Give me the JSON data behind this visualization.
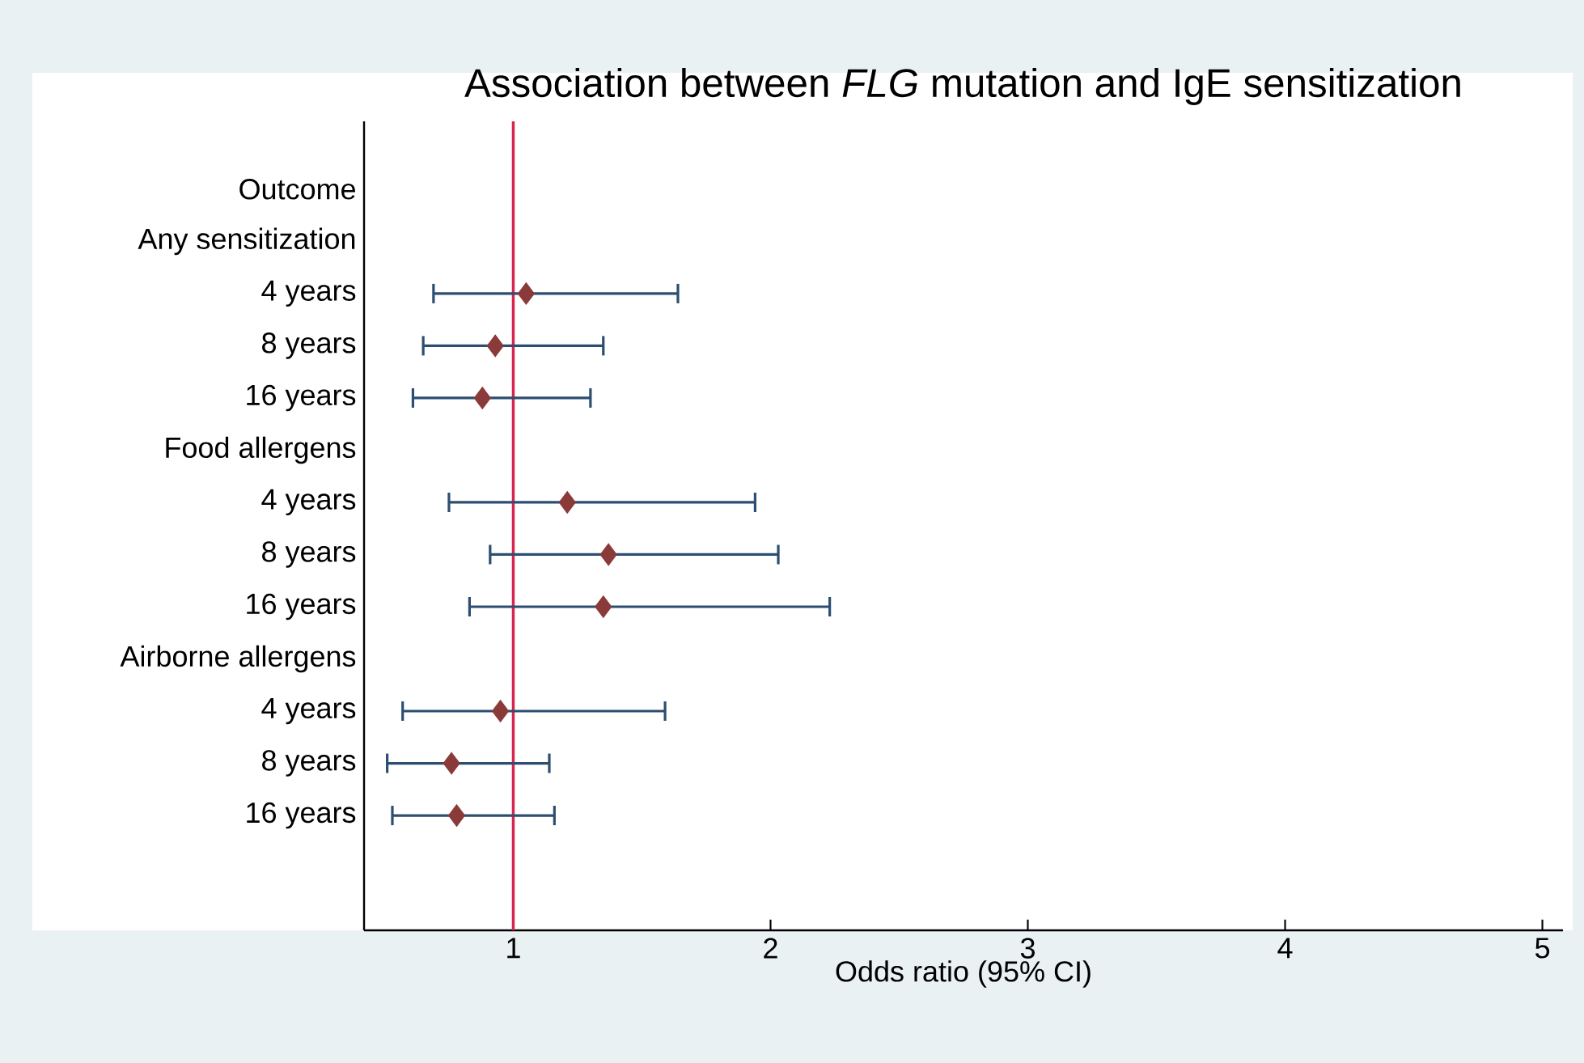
{
  "chart_data": {
    "type": "scatter",
    "orientation": "horizontal",
    "title": "Association between *FLG* mutation and IgE sensitization",
    "xlabel": "Odds ratio (95% CI)",
    "categories": [
      "Outcome",
      "Any sensitization",
      "4 years",
      "8 years",
      "16 years",
      "Food allergens",
      "4 years",
      "8 years",
      "16 years",
      "Airborne allergens",
      "4 years",
      "8 years",
      "16 years"
    ],
    "series": [
      {
        "color": "#8b3a3a",
        "values": [
          null,
          null,
          1.05,
          0.93,
          0.88,
          null,
          1.21,
          1.37,
          1.35,
          null,
          0.95,
          0.76,
          0.78
        ],
        "errors": [
          null,
          null,
          [
            0.69,
            1.64
          ],
          [
            0.65,
            1.35
          ],
          [
            0.61,
            1.3
          ],
          null,
          [
            0.75,
            1.94
          ],
          [
            0.91,
            2.03
          ],
          [
            0.83,
            2.23
          ],
          null,
          [
            0.57,
            1.59
          ],
          [
            0.51,
            1.14
          ],
          [
            0.53,
            1.16
          ]
        ]
      }
    ],
    "marker": "diamond",
    "xlim": [
      0.42,
      5.08
    ],
    "xticks": [
      1,
      2,
      3,
      4,
      5
    ],
    "ref_lines": [
      {
        "axis": "x",
        "value": 1,
        "color": "#d62650"
      }
    ],
    "grid": false
  }
}
